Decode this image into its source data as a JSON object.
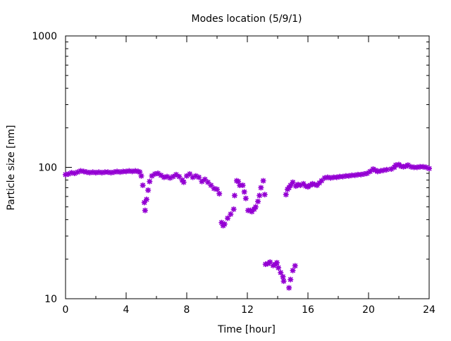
{
  "chart_data": {
    "type": "scatter",
    "title": "Modes location (5/9/1)",
    "xlabel": "Time [hour]",
    "ylabel": "Particle size [nm]",
    "xlim": [
      0,
      24
    ],
    "ylim": [
      10,
      1000
    ],
    "yscale": "log",
    "xticks": [
      0,
      4,
      8,
      12,
      16,
      20,
      24
    ],
    "xtick_labels": [
      "0",
      "4",
      "8",
      "12",
      "16",
      "20",
      "24"
    ],
    "yticks": [
      10,
      100,
      1000
    ],
    "ytick_labels": [
      "10",
      "100",
      "1000"
    ],
    "grid": false,
    "marker_color": "#9400d3",
    "series": [
      {
        "name": "modes",
        "points": [
          [
            0,
            88
          ],
          [
            0.2,
            89
          ],
          [
            0.4,
            91
          ],
          [
            0.6,
            90
          ],
          [
            0.8,
            92
          ],
          [
            1.0,
            94
          ],
          [
            1.2,
            93
          ],
          [
            1.4,
            92
          ],
          [
            1.6,
            91
          ],
          [
            1.8,
            92
          ],
          [
            2.0,
            91
          ],
          [
            2.2,
            92
          ],
          [
            2.4,
            91
          ],
          [
            2.6,
            92
          ],
          [
            2.8,
            92
          ],
          [
            3.0,
            91
          ],
          [
            3.2,
            92
          ],
          [
            3.4,
            93
          ],
          [
            3.6,
            92
          ],
          [
            3.8,
            93
          ],
          [
            4.0,
            93
          ],
          [
            4.2,
            94
          ],
          [
            4.4,
            93
          ],
          [
            4.6,
            94
          ],
          [
            4.8,
            93
          ],
          [
            4.9,
            92
          ],
          [
            5.0,
            86
          ],
          [
            5.1,
            73
          ],
          [
            5.2,
            54
          ],
          [
            5.25,
            47
          ],
          [
            5.35,
            57
          ],
          [
            5.45,
            67
          ],
          [
            5.55,
            78
          ],
          [
            5.7,
            86
          ],
          [
            5.9,
            89
          ],
          [
            6.1,
            90
          ],
          [
            6.3,
            87
          ],
          [
            6.5,
            84
          ],
          [
            6.7,
            85
          ],
          [
            6.9,
            83
          ],
          [
            7.1,
            85
          ],
          [
            7.3,
            88
          ],
          [
            7.5,
            85
          ],
          [
            7.7,
            80
          ],
          [
            7.8,
            77
          ],
          [
            8.0,
            86
          ],
          [
            8.2,
            89
          ],
          [
            8.4,
            84
          ],
          [
            8.6,
            86
          ],
          [
            8.8,
            84
          ],
          [
            9.0,
            78
          ],
          [
            9.2,
            81
          ],
          [
            9.4,
            77
          ],
          [
            9.6,
            73
          ],
          [
            9.8,
            69
          ],
          [
            10.0,
            68
          ],
          [
            10.15,
            63
          ],
          [
            10.3,
            38
          ],
          [
            10.4,
            36
          ],
          [
            10.5,
            37
          ],
          [
            10.7,
            41
          ],
          [
            10.9,
            44
          ],
          [
            11.1,
            48
          ],
          [
            11.16,
            61
          ],
          [
            11.3,
            79
          ],
          [
            11.4,
            78
          ],
          [
            11.5,
            73
          ],
          [
            11.7,
            73
          ],
          [
            11.8,
            65
          ],
          [
            11.9,
            58
          ],
          [
            12.05,
            47
          ],
          [
            12.2,
            47
          ],
          [
            12.3,
            46
          ],
          [
            12.45,
            48
          ],
          [
            12.55,
            50
          ],
          [
            12.7,
            55
          ],
          [
            12.8,
            61
          ],
          [
            12.9,
            70
          ],
          [
            13.05,
            79
          ],
          [
            13.15,
            62
          ],
          [
            13.2,
            18.3
          ],
          [
            13.35,
            18.5
          ],
          [
            13.5,
            19
          ],
          [
            13.7,
            17.9
          ],
          [
            13.85,
            18.2
          ],
          [
            13.95,
            18.8
          ],
          [
            14.05,
            17.2
          ],
          [
            14.2,
            15.8
          ],
          [
            14.35,
            14.7
          ],
          [
            14.4,
            13.6
          ],
          [
            14.75,
            12.1
          ],
          [
            14.85,
            14
          ],
          [
            15.0,
            16.4
          ],
          [
            15.15,
            17.8
          ],
          [
            14.55,
            62
          ],
          [
            14.65,
            68
          ],
          [
            14.75,
            70
          ],
          [
            14.85,
            73
          ],
          [
            15.0,
            77
          ],
          [
            15.2,
            72
          ],
          [
            15.35,
            74
          ],
          [
            15.5,
            73
          ],
          [
            15.7,
            75
          ],
          [
            15.85,
            72
          ],
          [
            16.0,
            71
          ],
          [
            16.15,
            73
          ],
          [
            16.3,
            75
          ],
          [
            16.45,
            74
          ],
          [
            16.6,
            73
          ],
          [
            16.75,
            76
          ],
          [
            16.9,
            79
          ],
          [
            17.1,
            83
          ],
          [
            17.3,
            84
          ],
          [
            17.5,
            83
          ],
          [
            17.7,
            84
          ],
          [
            17.9,
            84
          ],
          [
            18.1,
            85
          ],
          [
            18.3,
            85
          ],
          [
            18.5,
            86
          ],
          [
            18.7,
            86
          ],
          [
            18.9,
            87
          ],
          [
            19.1,
            87
          ],
          [
            19.3,
            88
          ],
          [
            19.5,
            88
          ],
          [
            19.7,
            89
          ],
          [
            19.9,
            90
          ],
          [
            20.1,
            93
          ],
          [
            20.3,
            97
          ],
          [
            20.45,
            95
          ],
          [
            20.6,
            93
          ],
          [
            20.8,
            94
          ],
          [
            21.0,
            95
          ],
          [
            21.2,
            96
          ],
          [
            21.5,
            97
          ],
          [
            21.7,
            100
          ],
          [
            21.8,
            104
          ],
          [
            22.0,
            105
          ],
          [
            22.15,
            102
          ],
          [
            22.3,
            101
          ],
          [
            22.45,
            102
          ],
          [
            22.6,
            104
          ],
          [
            22.8,
            101
          ],
          [
            23.0,
            100
          ],
          [
            23.2,
            100
          ],
          [
            23.4,
            101
          ],
          [
            23.6,
            101
          ],
          [
            23.8,
            100
          ],
          [
            24.0,
            98
          ]
        ]
      }
    ]
  }
}
